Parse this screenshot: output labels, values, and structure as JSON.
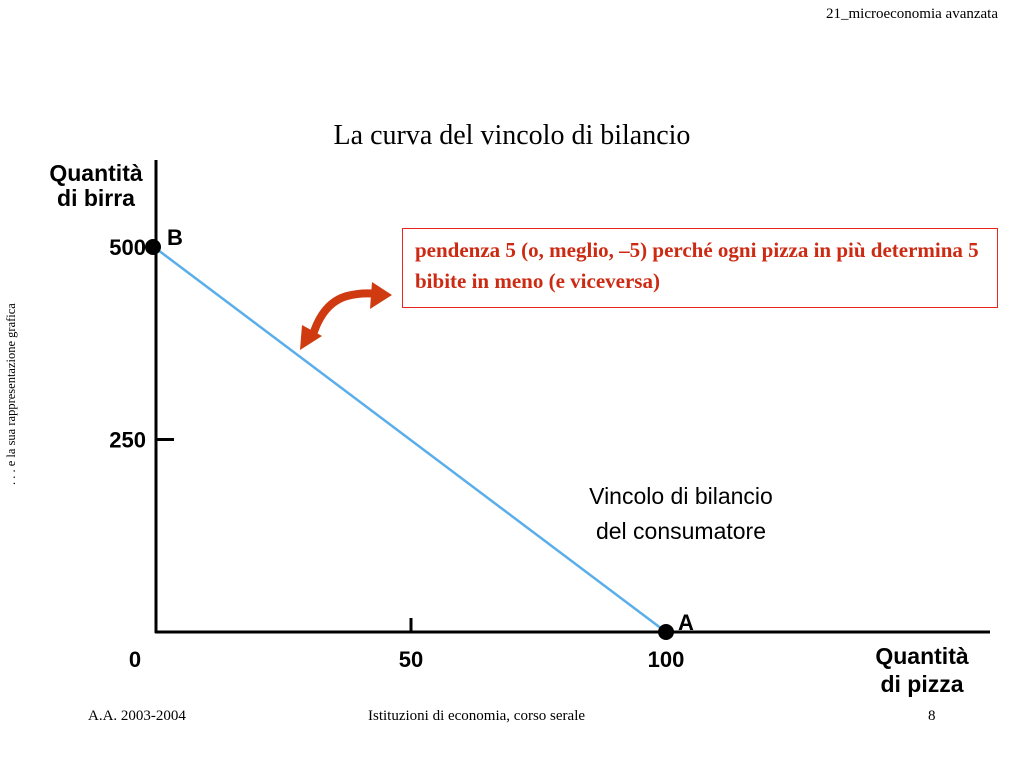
{
  "header": {
    "course_tag": "21_microeconomia avanzata"
  },
  "slide": {
    "title": "La curva del vincolo di bilancio",
    "side_note": ". . . e la sua rappresentazione grafica",
    "callout": "pendenza 5 (o, meglio, –5) perché ogni pizza in più determina 5 bibite in meno (e viceversa)"
  },
  "colors": {
    "line": "#5aaee9",
    "callout_text": "#cc2a12",
    "callout_border": "#e8251f",
    "arrow": "#d03a10"
  },
  "chart_data": {
    "type": "line",
    "title": "",
    "xlabel": [
      "Quantità",
      "di pizza"
    ],
    "ylabel": [
      "Quantità",
      "di birra"
    ],
    "xlim": [
      0,
      130
    ],
    "ylim": [
      0,
      500
    ],
    "x_ticks": [
      0,
      50,
      100
    ],
    "x_tick_labels": [
      "0",
      "50",
      "100"
    ],
    "y_ticks": [
      250,
      500
    ],
    "y_tick_labels": [
      "250",
      "500"
    ],
    "series": [
      {
        "values": [
          {
            "x": 0,
            "y": 500
          },
          {
            "x": 100,
            "y": 0
          }
        ]
      }
    ],
    "points": [
      {
        "label": "B",
        "x": 0,
        "y": 500
      },
      {
        "label": "A",
        "x": 100,
        "y": 0
      }
    ],
    "annotations": [
      {
        "lines": [
          "Vincolo di bilancio",
          "del consumatore"
        ]
      }
    ]
  },
  "footer": {
    "left": "A.A. 2003-2004",
    "center": "Istituzioni di economia, corso serale",
    "page": "8"
  }
}
